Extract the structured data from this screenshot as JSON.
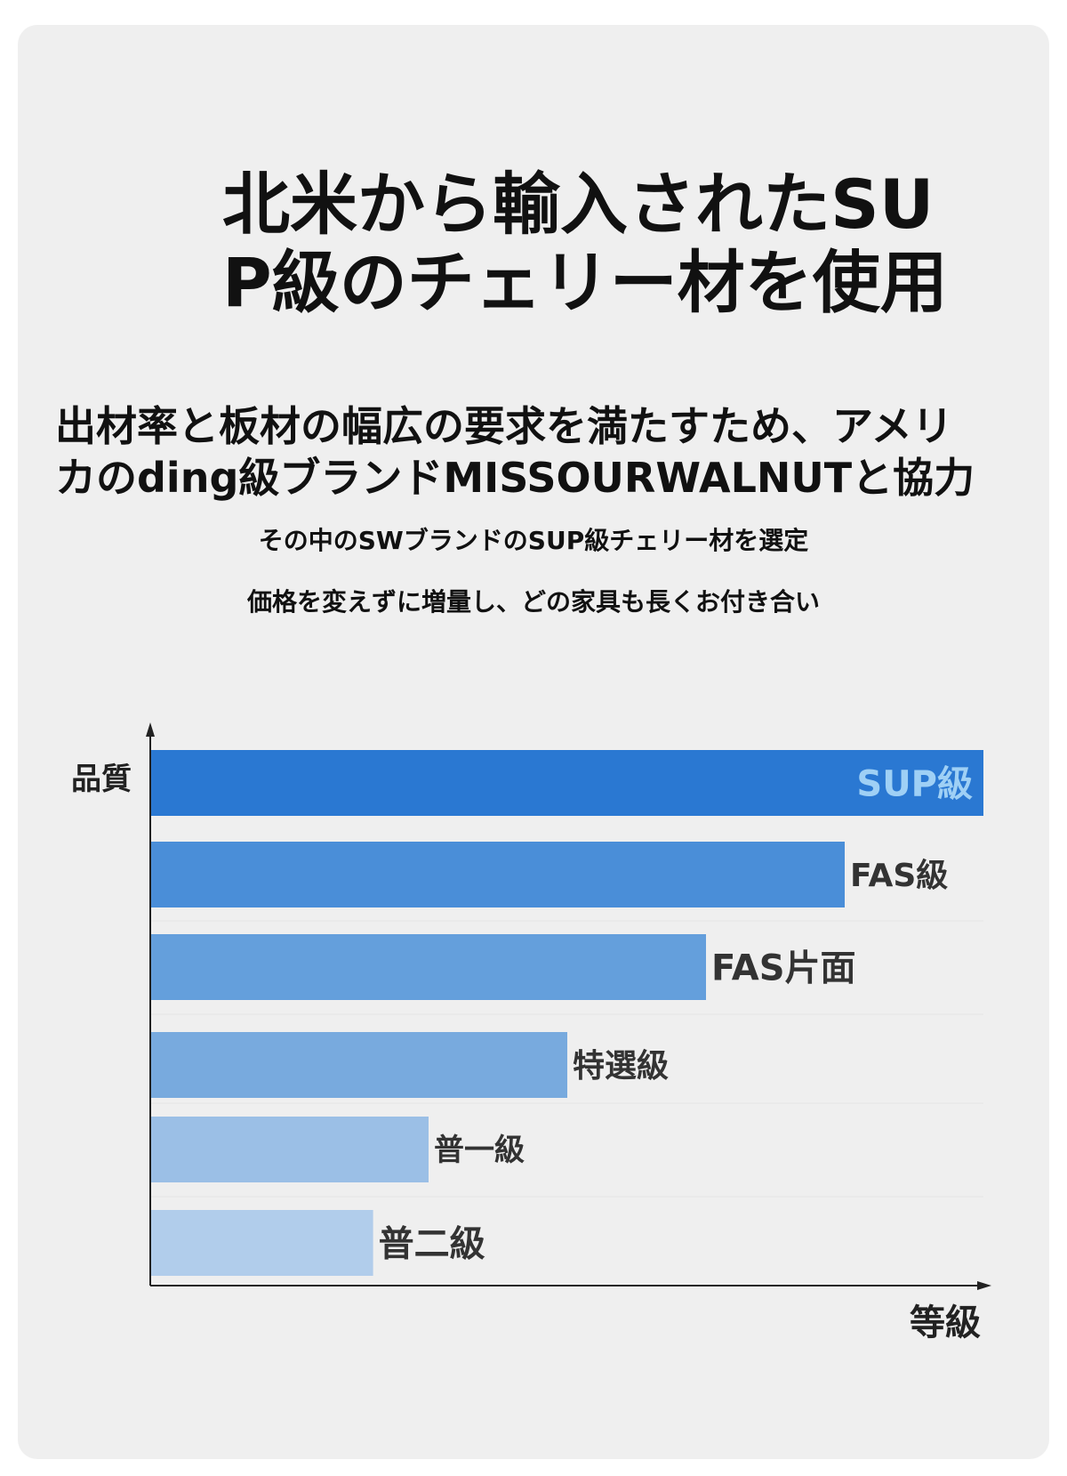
{
  "header": {
    "title_line1": "北米から輸入されたSU",
    "title_line2": "P級のチェリー材を使用",
    "subtitle_line1": "出材率と板材の幅広の要求を満たすため、アメリ",
    "subtitle_line2": "カのding級ブランドMISSOURWALNUTと協力",
    "note1": "その中のSWブランドのSUP級チェリー材を選定",
    "note2": "価格を変えずに増量し、どの家具も長くお付き合い"
  },
  "chart_data": {
    "type": "bar",
    "orientation": "horizontal",
    "ylabel": "品質",
    "xlabel": "等級",
    "categories": [
      "SUP級",
      "FAS級",
      "FAS片面",
      "特選級",
      "普一級",
      "普二級"
    ],
    "values": [
      6,
      5,
      4,
      3,
      2,
      1.6
    ],
    "xlim": [
      0,
      6
    ],
    "label_placement": [
      "inside-end",
      "outside-end",
      "outside-end",
      "outside-end",
      "outside-end",
      "outside-end"
    ],
    "colors": [
      "#2a78d2",
      "#4a8ed8",
      "#649fdc",
      "#78aade",
      "#9bbfe6",
      "#b1cdeb"
    ],
    "label_colors": [
      "#9fd0f5",
      "#333333",
      "#333333",
      "#333333",
      "#333333",
      "#333333"
    ],
    "grid": false
  }
}
